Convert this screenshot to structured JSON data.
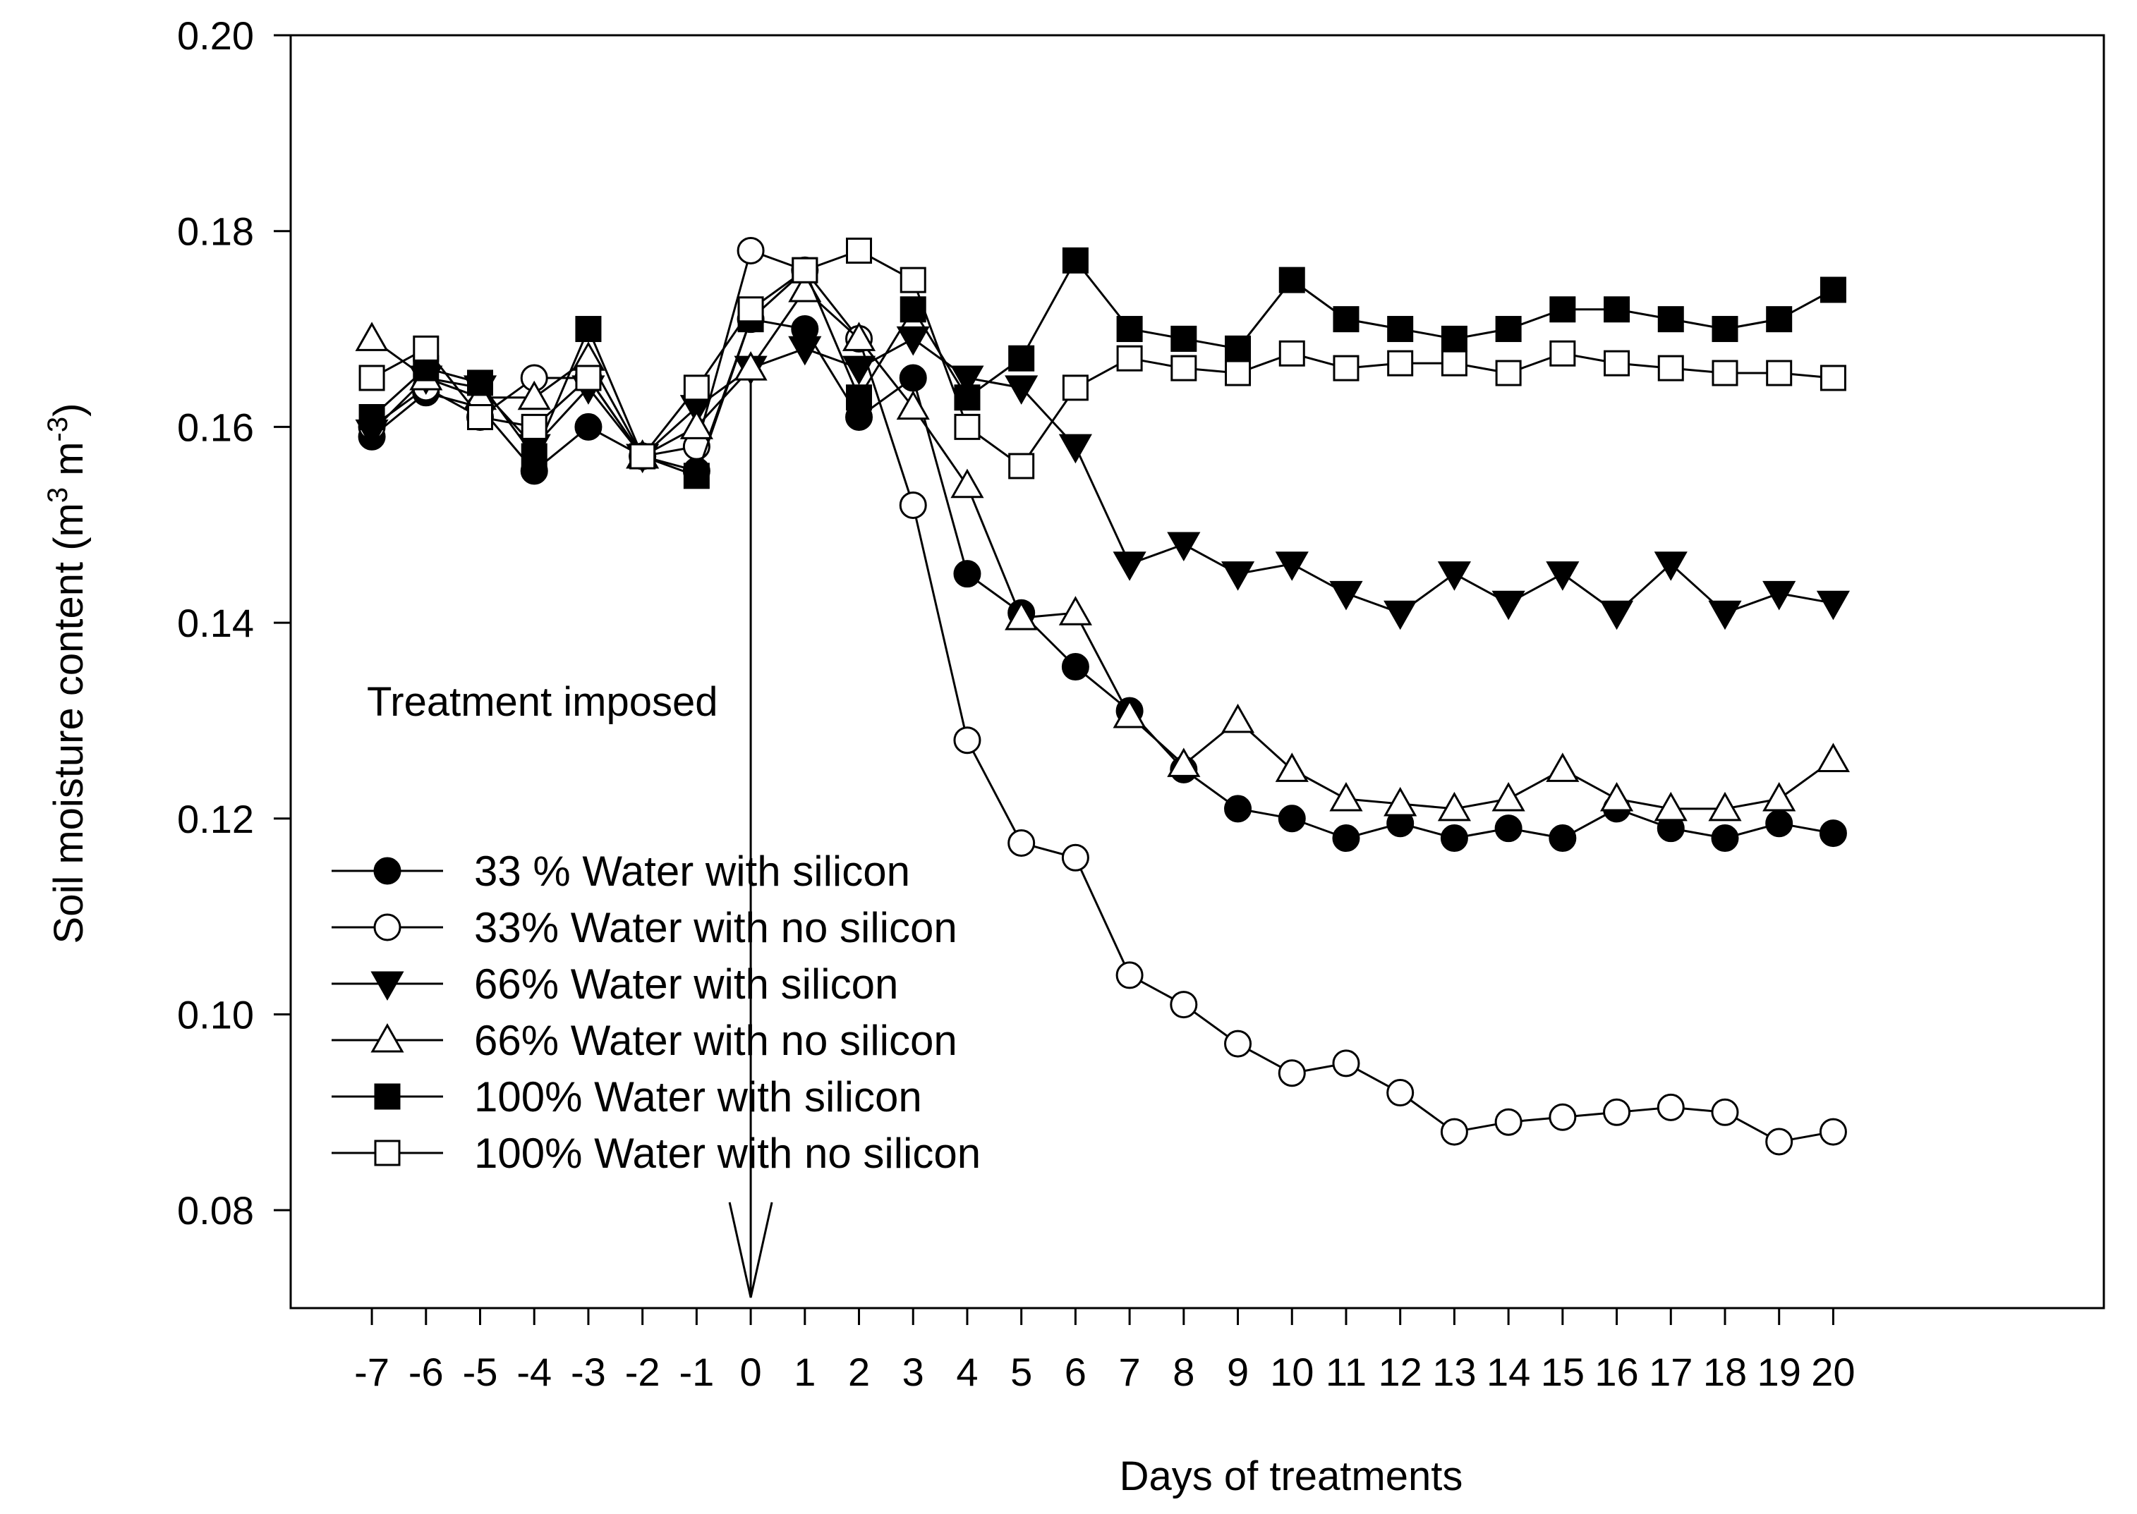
{
  "chart_data": {
    "type": "line",
    "title": "",
    "xlabel": "Days of treatments",
    "ylabel": {
      "main": "Soil moisture content (m",
      "sup1": "3",
      "mid": " m",
      "sup2": "-3",
      "end": ")"
    },
    "ylim": [
      0.07,
      0.2
    ],
    "y_ticks": [
      0.08,
      0.1,
      0.12,
      0.14,
      0.16,
      0.18,
      0.2
    ],
    "y_tick_labels": [
      "0.08",
      "0.10",
      "0.12",
      "0.14",
      "0.16",
      "0.18",
      "0.20"
    ],
    "xlim": [
      -8.5,
      25
    ],
    "x": [
      -7,
      -6,
      -5,
      -4,
      -3,
      -2,
      -1,
      0,
      1,
      2,
      3,
      4,
      5,
      6,
      7,
      8,
      9,
      10,
      11,
      12,
      13,
      14,
      15,
      16,
      17,
      18,
      19,
      20
    ],
    "x_tick_labels": [
      "-7",
      "-6",
      "-5",
      "-4",
      "-3",
      "-2",
      "-1",
      "0",
      "1",
      "2",
      "3",
      "4",
      "5",
      "6",
      "7",
      "8",
      "9",
      "10",
      "11",
      "12",
      "13",
      "14",
      "15",
      "16",
      "17",
      "18",
      "19",
      "20"
    ],
    "grid": false,
    "legend_position": "left-center",
    "annotation": {
      "text": "Treatment imposed",
      "x": 0
    },
    "series": [
      {
        "name": "33 % Water with silicon",
        "marker": "circle",
        "filled": true,
        "values": [
          0.159,
          0.1635,
          0.162,
          0.1555,
          0.16,
          0.157,
          0.1555,
          0.171,
          0.17,
          0.161,
          0.165,
          0.145,
          0.141,
          0.1355,
          0.131,
          0.125,
          0.121,
          0.12,
          0.118,
          0.1195,
          0.118,
          0.119,
          0.118,
          0.121,
          0.119,
          0.118,
          0.1195,
          0.1185
        ]
      },
      {
        "name": "33% Water with no silicon",
        "marker": "circle",
        "filled": false,
        "values": [
          0.16,
          0.164,
          0.161,
          0.165,
          0.165,
          0.157,
          0.158,
          0.178,
          0.176,
          0.169,
          0.152,
          0.128,
          0.1175,
          0.116,
          0.104,
          0.101,
          0.097,
          0.094,
          0.095,
          0.092,
          0.088,
          0.089,
          0.0895,
          0.09,
          0.0905,
          0.09,
          0.087,
          0.088
        ]
      },
      {
        "name": "66% Water with silicon",
        "marker": "triangle-down",
        "filled": true,
        "values": [
          0.1595,
          0.165,
          0.164,
          0.158,
          0.164,
          0.157,
          0.162,
          0.166,
          0.168,
          0.166,
          0.169,
          0.165,
          0.164,
          0.158,
          0.146,
          0.148,
          0.145,
          0.146,
          0.143,
          0.141,
          0.145,
          0.142,
          0.145,
          0.141,
          0.146,
          0.141,
          0.143,
          0.142
        ]
      },
      {
        "name": "66% Water with no silicon",
        "marker": "triangle-up",
        "filled": false,
        "values": [
          0.169,
          0.165,
          0.163,
          0.163,
          0.167,
          0.157,
          0.16,
          0.166,
          0.174,
          0.169,
          0.162,
          0.154,
          0.1405,
          0.141,
          0.1305,
          0.1255,
          0.13,
          0.125,
          0.122,
          0.1215,
          0.121,
          0.122,
          0.125,
          0.122,
          0.121,
          0.121,
          0.122,
          0.126
        ]
      },
      {
        "name": "100% Water with silicon",
        "marker": "square",
        "filled": true,
        "values": [
          0.161,
          0.166,
          0.1645,
          0.157,
          0.17,
          0.157,
          0.155,
          0.171,
          0.176,
          0.163,
          0.172,
          0.163,
          0.167,
          0.177,
          0.17,
          0.169,
          0.168,
          0.175,
          0.171,
          0.17,
          0.169,
          0.17,
          0.172,
          0.172,
          0.171,
          0.17,
          0.171,
          0.174
        ]
      },
      {
        "name": "100% Water with no silicon",
        "marker": "square",
        "filled": false,
        "values": [
          0.165,
          0.168,
          0.161,
          0.16,
          0.165,
          0.157,
          0.164,
          0.172,
          0.176,
          0.178,
          0.175,
          0.16,
          0.156,
          0.164,
          0.167,
          0.166,
          0.1655,
          0.1675,
          0.166,
          0.1665,
          0.1665,
          0.1655,
          0.1675,
          0.1665,
          0.166,
          0.1655,
          0.1655,
          0.165
        ]
      }
    ]
  }
}
